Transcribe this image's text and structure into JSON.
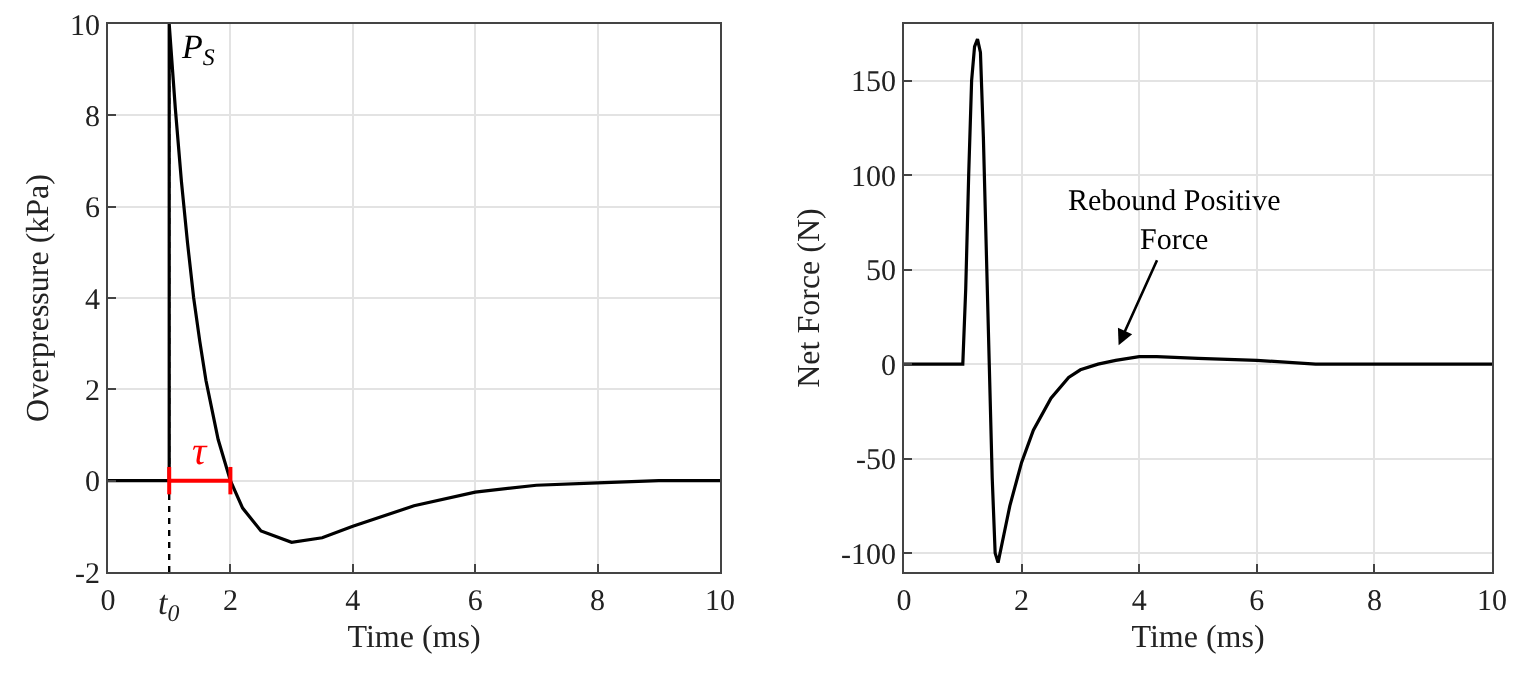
{
  "chart_data": [
    {
      "type": "line",
      "xlabel": "Time (ms)",
      "ylabel": "Overpressure (kPa)",
      "x": [
        0,
        1,
        1,
        1.1,
        1.2,
        1.3,
        1.4,
        1.5,
        1.6,
        1.8,
        2,
        2.2,
        2.5,
        3,
        3.5,
        4,
        5,
        6,
        7,
        8,
        9,
        10
      ],
      "series": [
        {
          "color": "#000000",
          "values": [
            0,
            0,
            10,
            8.15,
            6.55,
            5.2,
            4,
            3.05,
            2.2,
            0.9,
            0,
            -0.6,
            -1.1,
            -1.35,
            -1.25,
            -1,
            -0.55,
            -0.25,
            -0.1,
            -0.05,
            0,
            0
          ]
        }
      ],
      "xlim": [
        0,
        10
      ],
      "ylim": [
        -2,
        10
      ],
      "xticks": [
        0,
        2,
        4,
        6,
        8,
        10
      ],
      "yticks": [
        -2,
        0,
        2,
        4,
        6,
        8,
        10
      ],
      "ref_lines": [
        {
          "axis": "x",
          "value": 1,
          "label": "t$_{0}$",
          "color": "#000000",
          "line_style": "dotted"
        }
      ],
      "annotations": [
        {
          "text": "P$_{S}$",
          "x": 1,
          "y": 10
        },
        "τ"
      ],
      "grid": true,
      "marker": "none",
      "line_style": "solid"
    },
    {
      "type": "line",
      "xlabel": "Time (ms)",
      "ylabel": "Net Force (N)",
      "x": [
        0,
        1,
        1.05,
        1.1,
        1.15,
        1.2,
        1.25,
        1.3,
        1.35,
        1.4,
        1.45,
        1.5,
        1.55,
        1.6,
        1.7,
        1.8,
        2,
        2.2,
        2.5,
        2.8,
        3,
        3.3,
        3.6,
        4,
        4.3,
        5,
        6,
        7,
        8,
        10
      ],
      "series": [
        {
          "color": "#000000",
          "values": [
            0,
            0,
            40,
            100,
            150,
            168,
            172,
            165,
            120,
            60,
            0,
            -60,
            -100,
            -105,
            -90,
            -75,
            -52,
            -35,
            -18,
            -7,
            -3,
            0,
            2,
            4,
            4,
            3,
            2,
            0,
            0,
            0
          ]
        }
      ],
      "xlim": [
        0,
        10
      ],
      "ylim": [
        -110,
        180
      ],
      "xticks": [
        0,
        2,
        4,
        6,
        8,
        10
      ],
      "yticks": [
        -100,
        -50,
        0,
        50,
        100,
        150
      ],
      "annotations": [
        "Rebound Positive Force"
      ],
      "grid": true,
      "marker": "none",
      "line_style": "solid"
    }
  ]
}
